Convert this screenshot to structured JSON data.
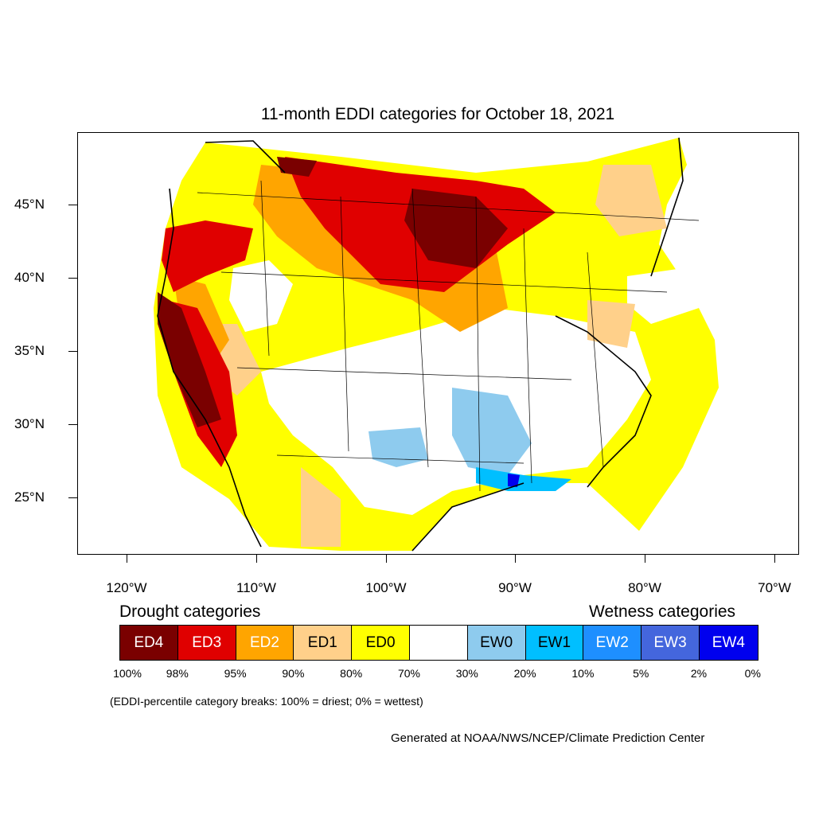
{
  "title": "11-month EDDI categories for October 18, 2021",
  "latitude_labels": [
    "45°N",
    "40°N",
    "35°N",
    "30°N",
    "25°N"
  ],
  "longitude_labels": [
    "120°W",
    "110°W",
    "100°W",
    "90°W",
    "80°W",
    "70°W"
  ],
  "legend": {
    "drought_heading": "Drought categories",
    "wetness_heading": "Wetness categories",
    "categories": [
      {
        "label": "ED4",
        "color": "#7a0000",
        "text_color": "#ffffff"
      },
      {
        "label": "ED3",
        "color": "#e00000",
        "text_color": "#ffffff"
      },
      {
        "label": "ED2",
        "color": "#ffa500",
        "text_color": "#ffffff"
      },
      {
        "label": "ED1",
        "color": "#ffd08a",
        "text_color": "#000000"
      },
      {
        "label": "ED0",
        "color": "#ffff00",
        "text_color": "#000000"
      },
      {
        "label": "",
        "color": "#ffffff",
        "text_color": "#000000"
      },
      {
        "label": "EW0",
        "color": "#8ecbee",
        "text_color": "#000000"
      },
      {
        "label": "EW1",
        "color": "#00bfff",
        "text_color": "#000000"
      },
      {
        "label": "EW2",
        "color": "#1e8fff",
        "text_color": "#ffffff"
      },
      {
        "label": "EW3",
        "color": "#4466dd",
        "text_color": "#ffffff"
      },
      {
        "label": "EW4",
        "color": "#0000ee",
        "text_color": "#ffffff"
      }
    ],
    "breaks": [
      "100%",
      "98%",
      "95%",
      "90%",
      "80%",
      "70%",
      "30%",
      "20%",
      "10%",
      "5%",
      "2%",
      "0%"
    ]
  },
  "note": "(EDDI-percentile category breaks: 100% = driest; 0% = wettest)",
  "credit": "Generated at NOAA/NWS/NCEP/Climate Prediction Center"
}
